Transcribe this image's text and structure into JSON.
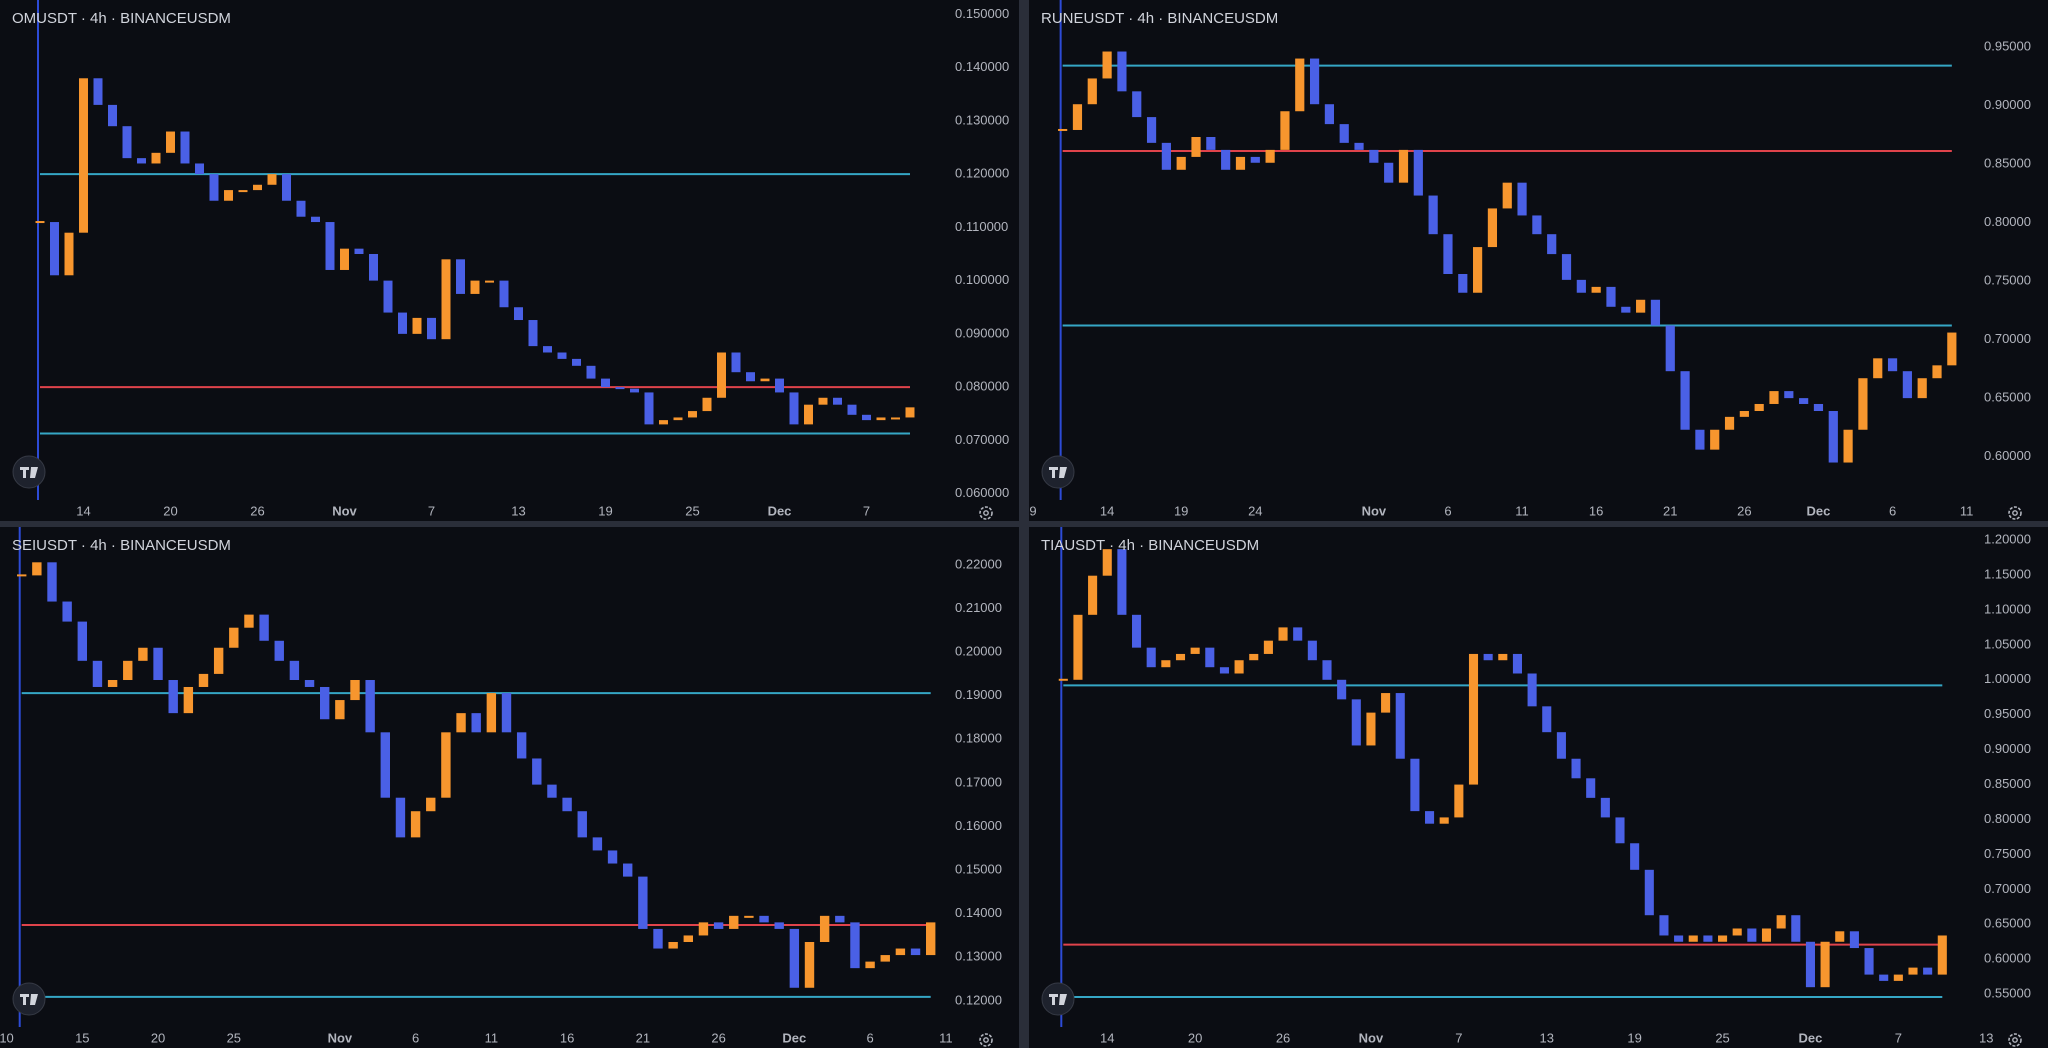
{
  "chart_data": [
    {
      "type": "candlestick",
      "title": "OMUSDT · 4h · BINANCEUSDM",
      "up_color": "#f7962e",
      "down_color": "#4a60e6",
      "categories": [
        null,
        null,
        null,
        null,
        null,
        "14",
        null,
        null,
        null,
        null,
        null,
        "20",
        null,
        null,
        null,
        null,
        null,
        "26",
        null,
        null,
        null,
        null,
        null,
        "Nov",
        null,
        null,
        null,
        null,
        null,
        "7",
        null,
        null,
        null,
        null,
        null,
        "13",
        null,
        null,
        null,
        null,
        null,
        "19",
        null,
        null,
        null,
        null,
        null,
        "25",
        null,
        null,
        null,
        null,
        null,
        "Dec",
        null,
        null,
        null,
        null,
        null,
        "7",
        null,
        null,
        null,
        null,
        null,
        null
      ],
      "values": [
        null,
        null,
        0.111,
        0.101,
        0.109,
        0.138,
        0.133,
        0.129,
        0.123,
        0.122,
        0.124,
        0.128,
        0.122,
        0.12,
        0.115,
        0.117,
        0.117,
        0.118,
        0.12,
        0.115,
        0.112,
        0.111,
        0.102,
        0.106,
        0.105,
        0.1,
        0.094,
        0.09,
        0.093,
        0.089,
        0.104,
        0.0975,
        0.1,
        0.1,
        0.095,
        0.0926,
        0.0877,
        0.0865,
        0.0853,
        0.084,
        0.0816,
        0.08,
        0.0797,
        0.079,
        0.073,
        0.0738,
        0.0743,
        0.0755,
        0.078,
        0.0865,
        0.0828,
        0.0811,
        0.0816,
        0.079,
        0.073,
        0.0767,
        0.078,
        0.0767,
        0.0748,
        0.0738,
        0.0743,
        0.0743,
        0.0762,
        null,
        null,
        null
      ],
      "levels": [
        {
          "value": 0.12,
          "color": "#35a6c5"
        },
        {
          "value": 0.08,
          "color": "#e0434b"
        },
        {
          "value": 0.0713,
          "color": "#35a6c5"
        }
      ],
      "ylim": [
        0.0588,
        0.1527
      ],
      "yticks": [
        {
          "value": 0.06,
          "label": "0.060000"
        },
        {
          "value": 0.07,
          "label": "0.070000"
        },
        {
          "value": 0.08,
          "label": "0.080000"
        },
        {
          "value": 0.09,
          "label": "0.090000"
        },
        {
          "value": 0.1,
          "label": "0.100000"
        },
        {
          "value": 0.11,
          "label": "0.110000"
        },
        {
          "value": 0.12,
          "label": "0.120000"
        },
        {
          "value": 0.13,
          "label": "0.130000"
        },
        {
          "value": 0.14,
          "label": "0.140000"
        },
        {
          "value": 0.15,
          "label": "0.150000"
        }
      ]
    },
    {
      "type": "candlestick",
      "title": "RUNEUSDT · 4h · BINANCEUSDM",
      "up_color": "#f7962e",
      "down_color": "#4a60e6",
      "categories": [
        "9",
        null,
        null,
        null,
        null,
        "14",
        null,
        null,
        null,
        null,
        "19",
        null,
        null,
        null,
        null,
        "24",
        null,
        null,
        null,
        null,
        null,
        null,
        null,
        "Nov",
        null,
        null,
        null,
        null,
        "6",
        null,
        null,
        null,
        null,
        "11",
        null,
        null,
        null,
        null,
        "16",
        null,
        null,
        null,
        null,
        "21",
        null,
        null,
        null,
        null,
        "26",
        null,
        null,
        null,
        null,
        "Dec",
        null,
        null,
        null,
        null,
        "6",
        null,
        null,
        null,
        null,
        "11",
        null,
        null
      ],
      "values": [
        null,
        null,
        0.879,
        0.901,
        0.923,
        0.946,
        0.912,
        0.89,
        0.868,
        0.845,
        0.856,
        0.873,
        0.862,
        0.845,
        0.856,
        0.851,
        0.862,
        0.895,
        0.94,
        0.901,
        0.884,
        0.868,
        0.862,
        0.851,
        0.834,
        0.862,
        0.823,
        0.79,
        0.756,
        0.74,
        0.779,
        0.812,
        0.834,
        0.806,
        0.79,
        0.773,
        0.751,
        0.74,
        0.745,
        0.728,
        0.723,
        0.734,
        0.712,
        0.673,
        0.623,
        0.606,
        0.623,
        0.634,
        0.639,
        0.645,
        0.656,
        0.65,
        0.645,
        0.639,
        0.595,
        0.623,
        0.667,
        0.684,
        0.673,
        0.65,
        0.667,
        0.678,
        0.706,
        null,
        null,
        null
      ],
      "levels": [
        {
          "value": 0.934,
          "color": "#35a6c5"
        },
        {
          "value": 0.861,
          "color": "#e0434b"
        },
        {
          "value": 0.712,
          "color": "#35a6c5"
        }
      ],
      "ylim": [
        0.563,
        0.99
      ],
      "yticks": [
        {
          "value": 0.6,
          "label": "0.60000"
        },
        {
          "value": 0.65,
          "label": "0.65000"
        },
        {
          "value": 0.7,
          "label": "0.70000"
        },
        {
          "value": 0.75,
          "label": "0.75000"
        },
        {
          "value": 0.8,
          "label": "0.80000"
        },
        {
          "value": 0.85,
          "label": "0.85000"
        },
        {
          "value": 0.9,
          "label": "0.90000"
        },
        {
          "value": 0.95,
          "label": "0.95000"
        }
      ]
    },
    {
      "type": "candlestick",
      "title": "SEIUSDT · 4h · BINANCEUSDM",
      "up_color": "#f7962e",
      "down_color": "#4a60e6",
      "categories": [
        null,
        "10",
        null,
        null,
        null,
        null,
        "15",
        null,
        null,
        null,
        null,
        "20",
        null,
        null,
        null,
        null,
        "25",
        null,
        null,
        null,
        null,
        null,
        null,
        "Nov",
        null,
        null,
        null,
        null,
        "6",
        null,
        null,
        null,
        null,
        "11",
        null,
        null,
        null,
        null,
        "16",
        null,
        null,
        null,
        null,
        "21",
        null,
        null,
        null,
        null,
        "26",
        null,
        null,
        null,
        null,
        "Dec",
        null,
        null,
        null,
        null,
        "6",
        null,
        null,
        null,
        null,
        "11",
        null,
        null
      ],
      "values": [
        null,
        null,
        0.2176,
        0.2206,
        0.2116,
        0.207,
        0.198,
        0.192,
        0.1936,
        0.198,
        0.201,
        0.1936,
        0.186,
        0.192,
        0.195,
        0.201,
        0.2056,
        0.2086,
        0.2026,
        0.198,
        0.1936,
        0.192,
        0.1846,
        0.189,
        0.1936,
        0.1816,
        0.1666,
        0.1575,
        0.1635,
        0.1666,
        0.1816,
        0.186,
        0.1816,
        0.1906,
        0.1816,
        0.1756,
        0.1696,
        0.1666,
        0.1635,
        0.1575,
        0.1545,
        0.1515,
        0.1485,
        0.1365,
        0.132,
        0.1335,
        0.135,
        0.138,
        0.1365,
        0.1395,
        0.1395,
        0.138,
        0.1365,
        0.123,
        0.1335,
        0.1395,
        0.138,
        0.1275,
        0.129,
        0.1305,
        0.132,
        0.1305,
        0.138,
        null,
        null,
        null
      ],
      "levels": [
        {
          "value": 0.1906,
          "color": "#35a6c5"
        },
        {
          "value": 0.1374,
          "color": "#e0434b"
        },
        {
          "value": 0.1209,
          "color": "#35a6c5"
        }
      ],
      "ylim": [
        0.114,
        0.2287
      ],
      "yticks": [
        {
          "value": 0.12,
          "label": "0.12000"
        },
        {
          "value": 0.13,
          "label": "0.13000"
        },
        {
          "value": 0.14,
          "label": "0.14000"
        },
        {
          "value": 0.15,
          "label": "0.15000"
        },
        {
          "value": 0.16,
          "label": "0.16000"
        },
        {
          "value": 0.17,
          "label": "0.17000"
        },
        {
          "value": 0.18,
          "label": "0.18000"
        },
        {
          "value": 0.19,
          "label": "0.19000"
        },
        {
          "value": 0.2,
          "label": "0.20000"
        },
        {
          "value": 0.21,
          "label": "0.21000"
        },
        {
          "value": 0.22,
          "label": "0.22000"
        }
      ]
    },
    {
      "type": "candlestick",
      "title": "TIAUSDT · 4h · BINANCEUSDM",
      "up_color": "#f7962e",
      "down_color": "#4a60e6",
      "categories": [
        null,
        null,
        null,
        null,
        null,
        "14",
        null,
        null,
        null,
        null,
        null,
        "20",
        null,
        null,
        null,
        null,
        null,
        "26",
        null,
        null,
        null,
        null,
        null,
        "Nov",
        null,
        null,
        null,
        null,
        null,
        "7",
        null,
        null,
        null,
        null,
        null,
        "13",
        null,
        null,
        null,
        null,
        null,
        "19",
        null,
        null,
        null,
        null,
        null,
        "25",
        null,
        null,
        null,
        null,
        null,
        "Dec",
        null,
        null,
        null,
        null,
        null,
        "7",
        null,
        null,
        null,
        null,
        null,
        "13"
      ],
      "values": [
        null,
        null,
        1.0,
        1.093,
        1.149,
        1.187,
        1.093,
        1.046,
        1.018,
        1.028,
        1.037,
        1.046,
        1.018,
        1.009,
        1.028,
        1.037,
        1.056,
        1.075,
        1.056,
        1.028,
        1.0,
        0.972,
        0.906,
        0.953,
        0.981,
        0.887,
        0.812,
        0.794,
        0.803,
        0.85,
        1.037,
        1.028,
        1.037,
        1.009,
        0.962,
        0.925,
        0.887,
        0.859,
        0.831,
        0.803,
        0.766,
        0.728,
        0.663,
        0.634,
        0.625,
        0.634,
        0.625,
        0.634,
        0.644,
        0.625,
        0.644,
        0.663,
        0.625,
        0.56,
        0.625,
        0.64,
        0.616,
        0.578,
        0.569,
        0.578,
        0.588,
        0.578,
        0.634,
        null,
        null,
        null
      ],
      "levels": [
        {
          "value": 0.992,
          "color": "#35a6c5"
        },
        {
          "value": 0.621,
          "color": "#e0434b"
        },
        {
          "value": 0.546,
          "color": "#35a6c5"
        }
      ],
      "ylim": [
        0.503,
        1.2187
      ],
      "yticks": [
        {
          "value": 0.55,
          "label": "0.55000"
        },
        {
          "value": 0.6,
          "label": "0.60000"
        },
        {
          "value": 0.65,
          "label": "0.65000"
        },
        {
          "value": 0.7,
          "label": "0.70000"
        },
        {
          "value": 0.75,
          "label": "0.75000"
        },
        {
          "value": 0.8,
          "label": "0.80000"
        },
        {
          "value": 0.85,
          "label": "0.85000"
        },
        {
          "value": 0.9,
          "label": "0.90000"
        },
        {
          "value": 0.95,
          "label": "0.95000"
        },
        {
          "value": 1.0,
          "label": "1.00000"
        },
        {
          "value": 1.05,
          "label": "1.05000"
        },
        {
          "value": 1.1,
          "label": "1.10000"
        },
        {
          "value": 1.15,
          "label": "1.15000"
        },
        {
          "value": 1.2,
          "label": "1.20000"
        }
      ]
    }
  ]
}
